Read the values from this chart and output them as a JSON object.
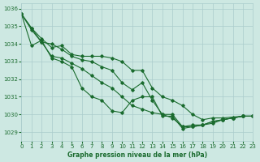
{
  "title": "Graphe pression niveau de la mer (hPa)",
  "background_color": "#cde8e2",
  "grid_color": "#aacccc",
  "line_color": "#1a6b2e",
  "xlim": [
    0,
    23
  ],
  "ylim": [
    1028.5,
    1036.3
  ],
  "yticks": [
    1029,
    1030,
    1031,
    1032,
    1033,
    1034,
    1035,
    1036
  ],
  "xticks": [
    0,
    1,
    2,
    3,
    4,
    5,
    6,
    7,
    8,
    9,
    10,
    11,
    12,
    13,
    14,
    15,
    16,
    17,
    18,
    19,
    20,
    21,
    22,
    23
  ],
  "series": [
    [
      1035.7,
      1034.9,
      1034.3,
      1033.8,
      1033.9,
      1033.4,
      1033.3,
      1033.3,
      1033.3,
      1033.2,
      1033.0,
      1032.5,
      1032.5,
      1031.5,
      1031.0,
      1030.8,
      1030.5,
      1030.0,
      1029.7,
      1029.8,
      1029.8,
      1029.85,
      1029.9,
      1029.9
    ],
    [
      1035.7,
      1034.8,
      1034.1,
      1034.0,
      1033.7,
      1033.3,
      1033.1,
      1033.0,
      1032.7,
      1032.5,
      1031.8,
      1031.4,
      1031.8,
      1030.8,
      1030.0,
      1029.8,
      1029.3,
      1029.4,
      1029.4,
      1029.6,
      1029.7,
      1029.8,
      1029.9,
      1029.9
    ],
    [
      1035.7,
      1034.9,
      1034.1,
      1033.3,
      1033.2,
      1032.9,
      1032.6,
      1032.2,
      1031.8,
      1031.5,
      1031.0,
      1030.5,
      1030.3,
      1030.1,
      1030.0,
      1030.0,
      1029.3,
      1029.3,
      1029.4,
      1029.6,
      1029.7,
      1029.8,
      1029.9,
      1029.9
    ],
    [
      1035.7,
      1033.9,
      1034.2,
      1033.2,
      1033.0,
      1032.7,
      1031.5,
      1031.0,
      1030.8,
      1030.2,
      1030.1,
      1030.8,
      1031.0,
      1031.0,
      1029.9,
      1029.9,
      1029.2,
      1029.3,
      1029.4,
      1029.5,
      1029.7,
      1029.8,
      1029.9,
      1029.9
    ]
  ]
}
